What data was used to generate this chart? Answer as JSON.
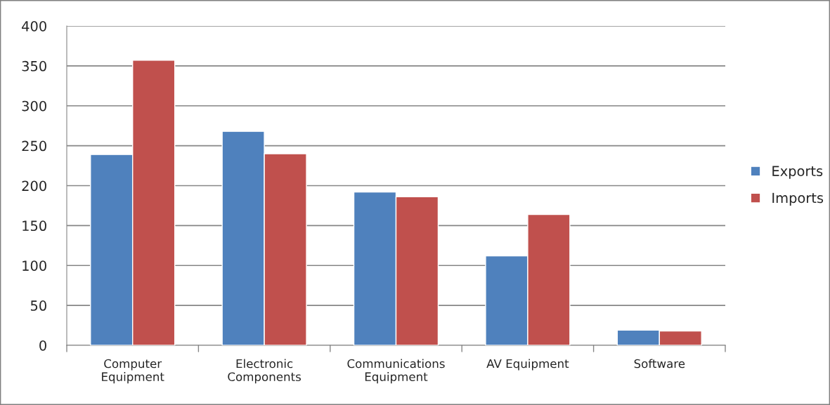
{
  "chart_data": {
    "type": "bar",
    "categories": [
      "Computer\nEquipment",
      "Electronic\nComponents",
      "Communications\nEquipment",
      "AV Equipment",
      "Software"
    ],
    "series": [
      {
        "name": "Exports",
        "color": "#4f81bd",
        "values": [
          239,
          268,
          192,
          112,
          19
        ]
      },
      {
        "name": "Imports",
        "color": "#c0504d",
        "values": [
          357,
          240,
          186,
          164,
          18
        ]
      }
    ],
    "ylim": [
      0,
      400
    ],
    "yticks": [
      0,
      50,
      100,
      150,
      200,
      250,
      300,
      350,
      400
    ],
    "grid": "y",
    "legend": "right"
  }
}
